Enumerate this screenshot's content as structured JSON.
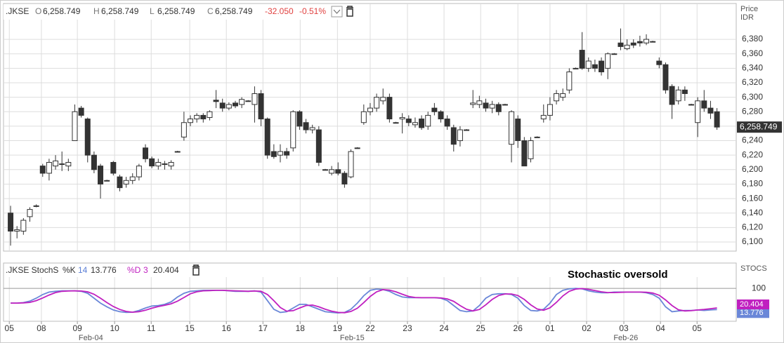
{
  "chart_data": [
    {
      "type": "candlestick",
      "header": {
        "symbol": ".JKSE",
        "o_label": "O",
        "o": "6,258.749",
        "h_label": "H",
        "h": "6,258.749",
        "l_label": "L",
        "l": "6,258.749",
        "c_label": "C",
        "c": "6,258.749",
        "change": "-32.050",
        "change_pct": "-0.51%"
      },
      "axis_label": [
        "Price",
        "IDR"
      ],
      "last_value_label": "6,258.749",
      "up_color": "#ffffff",
      "down_color": "#333333",
      "grid": true,
      "open": [
        6140,
        6115,
        6115,
        6135,
        6150,
        6205,
        6195,
        6205,
        6208,
        6205,
        6240,
        6285,
        6270,
        6220,
        6205,
        6185,
        6210,
        6190,
        6180,
        6185,
        6190,
        6230,
        6215,
        6205,
        6208,
        6205,
        6225,
        6245,
        6265,
        6270,
        6275,
        6272,
        6296,
        6292,
        6285,
        6292,
        6290,
        6295,
        6290,
        6305,
        6270,
        6225,
        6220,
        6225,
        6230,
        6280,
        6265,
        6255,
        6255,
        6200,
        6195,
        6200,
        6195,
        6190,
        6230,
        6265,
        6280,
        6285,
        6295,
        6300,
        6265,
        6270,
        6270,
        6262,
        6270,
        6260,
        6285,
        6280,
        6270,
        6258,
        6240,
        6255,
        6290,
        6290,
        6292,
        6285,
        6290,
        6290,
        6235,
        6270,
        6240,
        6215,
        6245,
        6270,
        6275,
        6295,
        6300,
        6310,
        6340,
        6365,
        6340,
        6345,
        6350,
        6340,
        6360,
        6375,
        6367,
        6375,
        6377,
        6375,
        6377,
        6350,
        6345,
        6315,
        6295,
        6310,
        6290,
        6265,
        6295,
        6285,
        6280
      ],
      "high": [
        6150,
        6122,
        6133,
        6148,
        6152,
        6208,
        6215,
        6220,
        6225,
        6215,
        6290,
        6288,
        6272,
        6225,
        6208,
        6186,
        6212,
        6193,
        6190,
        6195,
        6208,
        6235,
        6218,
        6215,
        6212,
        6213,
        6226,
        6280,
        6275,
        6278,
        6278,
        6282,
        6310,
        6298,
        6293,
        6295,
        6300,
        6296,
        6315,
        6310,
        6272,
        6235,
        6235,
        6230,
        6282,
        6282,
        6270,
        6262,
        6260,
        6201,
        6205,
        6210,
        6198,
        6228,
        6231,
        6290,
        6292,
        6305,
        6312,
        6305,
        6266,
        6278,
        6275,
        6272,
        6275,
        6280,
        6292,
        6282,
        6275,
        6262,
        6260,
        6256,
        6310,
        6302,
        6298,
        6295,
        6293,
        6291,
        6282,
        6275,
        6245,
        6245,
        6246,
        6290,
        6300,
        6310,
        6312,
        6340,
        6341,
        6390,
        6355,
        6352,
        6355,
        6362,
        6361,
        6395,
        6380,
        6380,
        6385,
        6387,
        6378,
        6355,
        6348,
        6318,
        6315,
        6315,
        6291,
        6300,
        6310,
        6295,
        6285
      ],
      "low": [
        6095,
        6105,
        6110,
        6128,
        6148,
        6190,
        6185,
        6200,
        6198,
        6198,
        6240,
        6272,
        6210,
        6195,
        6160,
        6184,
        6192,
        6170,
        6175,
        6180,
        6185,
        6210,
        6202,
        6200,
        6200,
        6200,
        6224,
        6240,
        6260,
        6265,
        6265,
        6268,
        6285,
        6280,
        6282,
        6285,
        6285,
        6294,
        6265,
        6260,
        6215,
        6215,
        6210,
        6215,
        6225,
        6255,
        6250,
        6250,
        6205,
        6199,
        6192,
        6192,
        6175,
        6188,
        6229,
        6262,
        6275,
        6280,
        6290,
        6265,
        6264,
        6250,
        6260,
        6258,
        6255,
        6255,
        6275,
        6265,
        6255,
        6225,
        6232,
        6254,
        6285,
        6285,
        6280,
        6278,
        6275,
        6289,
        6210,
        6230,
        6205,
        6210,
        6244,
        6265,
        6268,
        6290,
        6295,
        6305,
        6339,
        6338,
        6335,
        6335,
        6330,
        6325,
        6359,
        6365,
        6365,
        6368,
        6370,
        6372,
        6376,
        6340,
        6305,
        6270,
        6290,
        6295,
        6289,
        6245,
        6280,
        6270,
        6255
      ],
      "close": [
        6115,
        6117,
        6130,
        6145,
        6150,
        6195,
        6210,
        6212,
        6208,
        6210,
        6280,
        6275,
        6220,
        6200,
        6180,
        6185,
        6195,
        6175,
        6185,
        6190,
        6205,
        6215,
        6205,
        6210,
        6208,
        6210,
        6225,
        6265,
        6270,
        6275,
        6270,
        6280,
        6294,
        6285,
        6290,
        6288,
        6297,
        6295,
        6305,
        6270,
        6220,
        6218,
        6225,
        6220,
        6280,
        6260,
        6255,
        6258,
        6210,
        6200,
        6200,
        6195,
        6180,
        6225,
        6230,
        6280,
        6285,
        6300,
        6300,
        6270,
        6265,
        6272,
        6265,
        6265,
        6258,
        6275,
        6280,
        6270,
        6260,
        6235,
        6255,
        6255,
        6292,
        6295,
        6285,
        6290,
        6280,
        6290,
        6280,
        6240,
        6205,
        6240,
        6245,
        6275,
        6290,
        6305,
        6305,
        6335,
        6340,
        6340,
        6350,
        6340,
        6335,
        6360,
        6360,
        6370,
        6372,
        6372,
        6375,
        6380,
        6377,
        6345,
        6310,
        6290,
        6310,
        6305,
        6290,
        6295,
        6285,
        6278,
        6258.749
      ],
      "xlim": [
        -1.1,
        113
      ],
      "ylim": [
        6087.4,
        6429.5
      ],
      "yticks": [
        {
          "value": 6100,
          "label": "6,100"
        },
        {
          "value": 6120,
          "label": "6,120"
        },
        {
          "value": 6140,
          "label": "6,140"
        },
        {
          "value": 6160,
          "label": "6,160"
        },
        {
          "value": 6180,
          "label": "6,180"
        },
        {
          "value": 6200,
          "label": "6,200"
        },
        {
          "value": 6220,
          "label": "6,220"
        },
        {
          "value": 6240,
          "label": "6,240"
        },
        {
          "value": 6260,
          "label": "6,260"
        },
        {
          "value": 6280,
          "label": "6,280"
        },
        {
          "value": 6300,
          "label": "6,300"
        },
        {
          "value": 6320,
          "label": "6,320"
        },
        {
          "value": 6340,
          "label": "6,340"
        },
        {
          "value": 6360,
          "label": "6,360"
        },
        {
          "value": 6380,
          "label": "6,380"
        }
      ],
      "xticks": [
        {
          "value": -0.2,
          "label": "05"
        },
        {
          "value": 4.8,
          "label": "08"
        },
        {
          "value": 10.4,
          "label": "09"
        },
        {
          "value": 16.2,
          "label": "10"
        },
        {
          "value": 21.9,
          "label": "11"
        },
        {
          "value": 27.9,
          "label": "15"
        },
        {
          "value": 33.6,
          "label": "16"
        },
        {
          "value": 39.3,
          "label": "17"
        },
        {
          "value": 45.1,
          "label": "18"
        },
        {
          "value": 50.9,
          "label": "19"
        },
        {
          "value": 56,
          "label": "22"
        },
        {
          "value": 61.8,
          "label": "23"
        },
        {
          "value": 67.5,
          "label": "24"
        },
        {
          "value": 73.2,
          "label": "25"
        },
        {
          "value": 79,
          "label": "26"
        },
        {
          "value": 84,
          "label": "01"
        },
        {
          "value": 89.7,
          "label": "02"
        },
        {
          "value": 95.5,
          "label": "03"
        },
        {
          "value": 101.2,
          "label": "04"
        },
        {
          "value": 106.9,
          "label": "05"
        }
      ],
      "month_labels": [
        {
          "value": 12.5,
          "label": "Feb-04"
        },
        {
          "value": 53.2,
          "label": "Feb-15"
        },
        {
          "value": 95.8,
          "label": "Feb-26"
        }
      ]
    },
    {
      "type": "line",
      "header": {
        "study": ".JKSE StochS",
        "k_period": 14,
        "d_period": 3
      },
      "axis_label": "STOCS",
      "annotation": "Stochastic oversold",
      "xlim": [
        -1.1,
        113
      ],
      "ylim": [
        -34,
        146
      ],
      "yticks": [
        100
      ],
      "series": [
        {
          "name": "%K",
          "color": "#6a87d8",
          "last_label": "13.776",
          "values": [
            40,
            40,
            42,
            48,
            60,
            75,
            85,
            88,
            90,
            90,
            90,
            88,
            80,
            60,
            40,
            25,
            12,
            5,
            2,
            3,
            10,
            20,
            28,
            30,
            35,
            45,
            65,
            80,
            88,
            90,
            92,
            92,
            92,
            92,
            90,
            88,
            88,
            88,
            90,
            85,
            50,
            15,
            2,
            5,
            20,
            35,
            35,
            25,
            15,
            5,
            2,
            0,
            2,
            15,
            40,
            70,
            92,
            97,
            95,
            88,
            75,
            65,
            62,
            62,
            62,
            62,
            62,
            60,
            50,
            30,
            10,
            5,
            8,
            30,
            60,
            75,
            78,
            78,
            75,
            60,
            30,
            10,
            8,
            15,
            40,
            75,
            92,
            98,
            100,
            98,
            90,
            85,
            82,
            82,
            85,
            85,
            85,
            85,
            85,
            82,
            75,
            60,
            25,
            5,
            8,
            10,
            10,
            12,
            10,
            12,
            13.776
          ]
        },
        {
          "name": "%D",
          "color": "#c020c0",
          "last_label": "20.404",
          "values": [
            40,
            40,
            41,
            43,
            50,
            61,
            73,
            83,
            88,
            89,
            90,
            89,
            86,
            76,
            60,
            42,
            26,
            14,
            6,
            3,
            5,
            11,
            19,
            26,
            31,
            37,
            48,
            63,
            78,
            86,
            90,
            91,
            92,
            92,
            91,
            90,
            89,
            88,
            89,
            88,
            75,
            50,
            22,
            7,
            9,
            20,
            30,
            32,
            25,
            15,
            7,
            2,
            1,
            6,
            19,
            42,
            67,
            86,
            95,
            93,
            86,
            76,
            67,
            63,
            62,
            62,
            62,
            61,
            57,
            47,
            30,
            15,
            8,
            14,
            33,
            55,
            71,
            77,
            77,
            71,
            55,
            33,
            16,
            11,
            21,
            43,
            69,
            88,
            97,
            99,
            96,
            91,
            86,
            83,
            83,
            84,
            85,
            85,
            85,
            84,
            81,
            72,
            53,
            30,
            13,
            8,
            9,
            12,
            14,
            17,
            20.404
          ]
        }
      ]
    }
  ]
}
